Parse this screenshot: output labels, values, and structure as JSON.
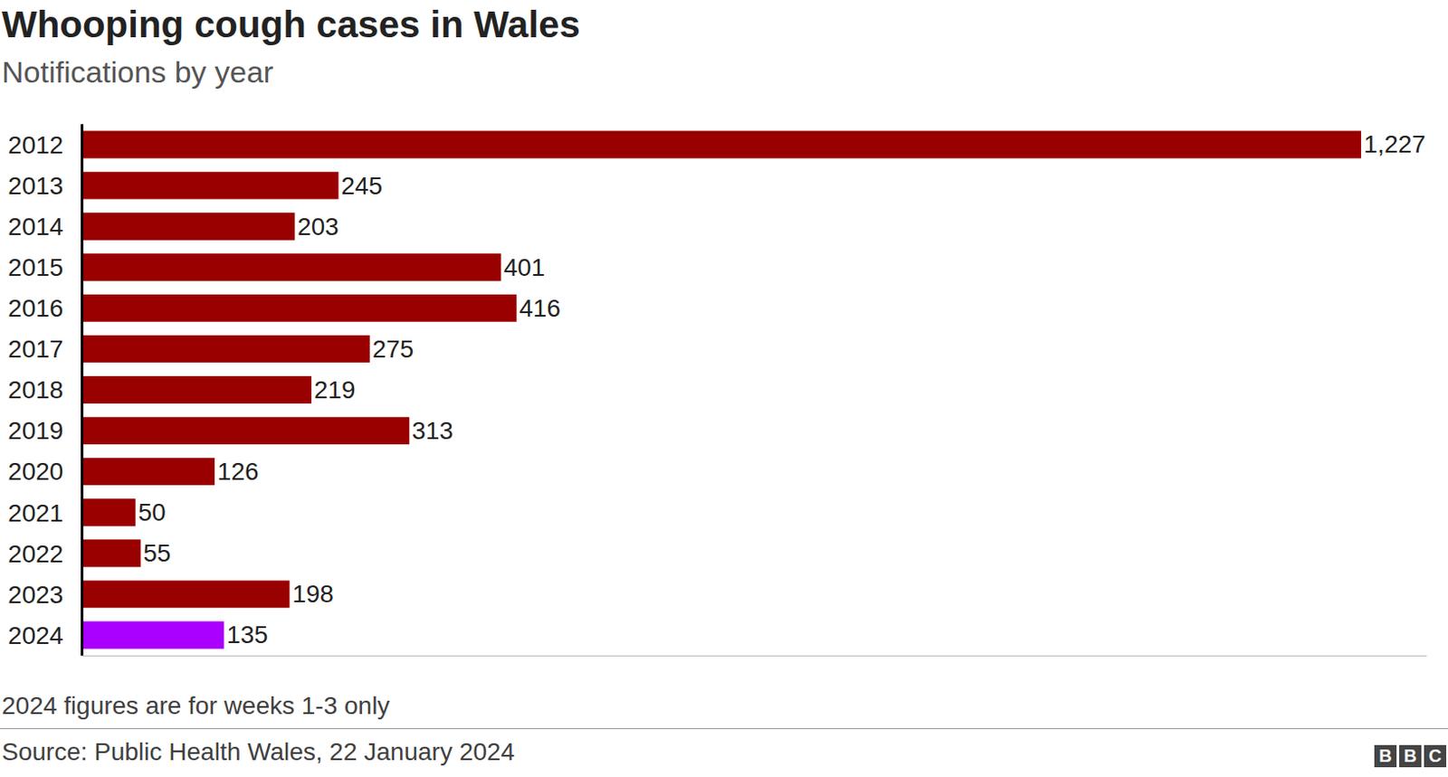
{
  "chart_data": {
    "type": "bar",
    "orientation": "horizontal",
    "title": "Whooping cough cases in Wales",
    "subtitle": "Notifications by year",
    "note": "2024 figures are for weeks 1-3 only",
    "source": "Source: Public Health Wales, 22 January 2024",
    "logo": "BBC",
    "categories": [
      "2012",
      "2013",
      "2014",
      "2015",
      "2016",
      "2017",
      "2018",
      "2019",
      "2020",
      "2021",
      "2022",
      "2023",
      "2024"
    ],
    "values": [
      1227,
      245,
      203,
      401,
      416,
      275,
      219,
      313,
      126,
      50,
      55,
      198,
      135
    ],
    "value_labels": [
      "1,227",
      "245",
      "203",
      "401",
      "416",
      "275",
      "219",
      "313",
      "126",
      "50",
      "55",
      "198",
      "135"
    ],
    "colors": [
      "#990000",
      "#990000",
      "#990000",
      "#990000",
      "#990000",
      "#990000",
      "#990000",
      "#990000",
      "#990000",
      "#990000",
      "#990000",
      "#990000",
      "#aa00ff"
    ],
    "xlim": [
      0,
      1290
    ],
    "xticks": [],
    "tick_labels": "y",
    "data_labels": true,
    "grid": false
  }
}
